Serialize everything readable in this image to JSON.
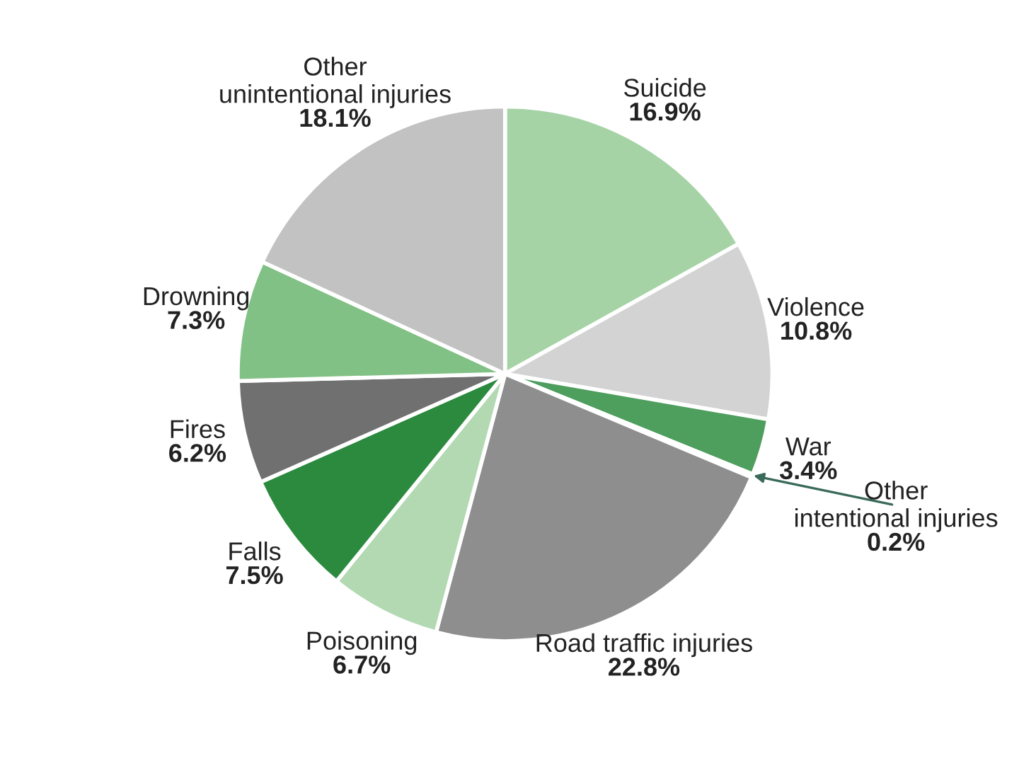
{
  "chart_data": {
    "type": "pie",
    "categories": [
      "Suicide",
      "Violence",
      "War",
      "Other\nintentional injuries",
      "Road traffic injuries",
      "Poisoning",
      "Falls",
      "Fires",
      "Drowning",
      "Other\nunintentional injuries"
    ],
    "values": [
      16.9,
      10.8,
      3.4,
      0.2,
      22.8,
      6.7,
      7.5,
      6.2,
      7.3,
      18.1
    ],
    "value_labels": [
      "16.9%",
      "10.8%",
      "3.4%",
      "0.2%",
      "22.8%",
      "6.7%",
      "7.5%",
      "6.2%",
      "7.3%",
      "18.1%"
    ],
    "colors": [
      "#a6d3a6",
      "#d3d3d3",
      "#4e9e5e",
      "#7a7a7a",
      "#8e8e8e",
      "#b3d9b3",
      "#2b8a3e",
      "#707070",
      "#82c185",
      "#c2c2c2"
    ]
  }
}
